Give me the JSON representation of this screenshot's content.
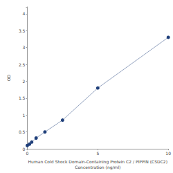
{
  "chart_data": {
    "type": "line",
    "x_label": "Human Cold Shock Domain-Containing Protein C2 / PIPPIN (CSDC2)\nConcentration (ng/ml)",
    "y_label": "OD",
    "x": [
      0,
      0.156,
      0.312,
      0.625,
      1.25,
      2.5,
      5,
      10
    ],
    "values": [
      0.1,
      0.14,
      0.2,
      0.32,
      0.5,
      0.85,
      1.8,
      3.3
    ],
    "color": "#1f3f7a",
    "marker": "circle",
    "xlim": [
      0,
      10
    ],
    "xticks": [
      0,
      5,
      10
    ],
    "ylim": [
      0,
      4.2
    ],
    "yticks": [
      0,
      0.5,
      1,
      1.5,
      2,
      2.5,
      3,
      3.5,
      4
    ],
    "grid": false
  }
}
